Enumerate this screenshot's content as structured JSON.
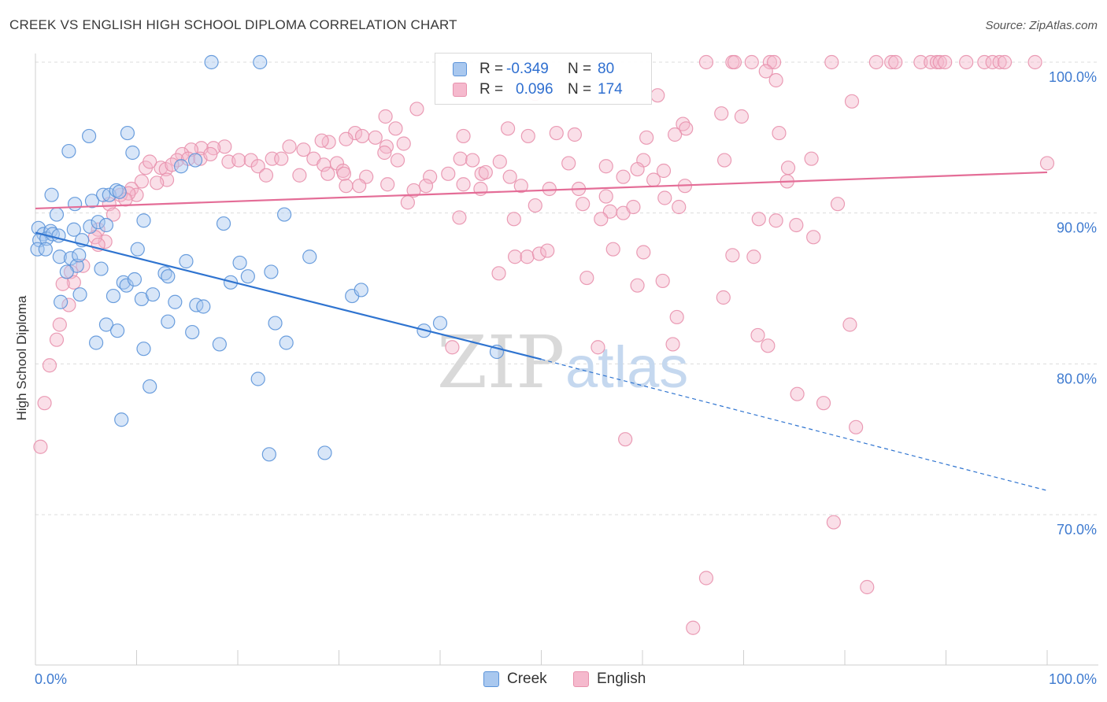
{
  "header": {
    "title": "CREEK VS ENGLISH HIGH SCHOOL DIPLOMA CORRELATION CHART",
    "source": "Source: ZipAtlas.com"
  },
  "watermark": {
    "zip": "ZIP",
    "atlas": "atlas"
  },
  "legend": {
    "rows": [
      {
        "r_label": "R =",
        "r_value": "-0.349",
        "n_label": "N =",
        "n_value": "80"
      },
      {
        "r_label": "R =",
        "r_value": "0.096",
        "n_label": "N =",
        "n_value": "174"
      }
    ],
    "bottom": [
      "Creek",
      "English"
    ]
  },
  "colors": {
    "creek_fill": "#a9c8ef",
    "creek_stroke": "#5b93d9",
    "creek_line": "#2f74d0",
    "english_fill": "#f5b9cd",
    "english_stroke": "#e891ad",
    "english_line": "#e46d97",
    "tick_label": "#3f7bd0"
  },
  "chart_data": {
    "type": "scatter",
    "title": "CREEK VS ENGLISH HIGH SCHOOL DIPLOMA CORRELATION CHART",
    "xlabel": "",
    "ylabel": "High School Diploma",
    "xlim": [
      0,
      100
    ],
    "ylim": [
      60,
      104
    ],
    "x_tick_labels": [
      "0.0%",
      "100.0%"
    ],
    "y_ticks": [
      70,
      80,
      90,
      100
    ],
    "y_tick_labels": [
      "70.0%",
      "80.0%",
      "90.0%",
      "100.0%"
    ],
    "grid": "horizontal dashed",
    "legend_position": "top-center",
    "series": [
      {
        "name": "Creek",
        "r": -0.349,
        "n": 80,
        "trend": {
          "x": [
            0,
            50
          ],
          "y": [
            88.7,
            80.3
          ],
          "dashed_extension": {
            "x": [
              50,
              100
            ],
            "y": [
              80.3,
              71.6
            ]
          }
        },
        "points": [
          [
            17.4,
            100
          ],
          [
            22.2,
            100
          ],
          [
            5.3,
            95.1
          ],
          [
            9.1,
            95.3
          ],
          [
            3.3,
            94.1
          ],
          [
            9.6,
            94.0
          ],
          [
            14.4,
            93.1
          ],
          [
            15.8,
            93.5
          ],
          [
            1.6,
            91.2
          ],
          [
            3.9,
            90.6
          ],
          [
            5.6,
            90.8
          ],
          [
            6.7,
            91.2
          ],
          [
            7.3,
            91.2
          ],
          [
            8.0,
            91.5
          ],
          [
            8.3,
            91.4
          ],
          [
            2.1,
            89.9
          ],
          [
            0.3,
            89.0
          ],
          [
            0.8,
            88.6
          ],
          [
            1.5,
            88.8
          ],
          [
            0.4,
            88.2
          ],
          [
            1.1,
            88.3
          ],
          [
            1.7,
            88.6
          ],
          [
            0.2,
            87.6
          ],
          [
            1.0,
            87.6
          ],
          [
            2.3,
            88.5
          ],
          [
            3.8,
            88.9
          ],
          [
            4.6,
            88.2
          ],
          [
            5.4,
            89.1
          ],
          [
            6.2,
            89.4
          ],
          [
            7.0,
            89.2
          ],
          [
            10.7,
            89.5
          ],
          [
            18.6,
            89.3
          ],
          [
            24.6,
            89.9
          ],
          [
            2.4,
            87.1
          ],
          [
            3.5,
            87.0
          ],
          [
            4.1,
            86.5
          ],
          [
            4.3,
            87.2
          ],
          [
            3.1,
            86.1
          ],
          [
            6.5,
            86.3
          ],
          [
            10.1,
            87.6
          ],
          [
            14.9,
            86.8
          ],
          [
            20.2,
            86.7
          ],
          [
            27.1,
            87.1
          ],
          [
            12.8,
            86.0
          ],
          [
            13.1,
            85.8
          ],
          [
            21.0,
            85.8
          ],
          [
            23.3,
            86.1
          ],
          [
            8.7,
            85.4
          ],
          [
            9.0,
            85.2
          ],
          [
            9.8,
            85.6
          ],
          [
            19.3,
            85.4
          ],
          [
            2.5,
            84.1
          ],
          [
            4.4,
            84.6
          ],
          [
            7.7,
            84.5
          ],
          [
            10.5,
            84.3
          ],
          [
            11.6,
            84.6
          ],
          [
            13.8,
            84.1
          ],
          [
            15.9,
            83.9
          ],
          [
            16.6,
            83.8
          ],
          [
            31.3,
            84.5
          ],
          [
            32.2,
            84.9
          ],
          [
            7.0,
            82.6
          ],
          [
            8.1,
            82.2
          ],
          [
            13.1,
            82.8
          ],
          [
            15.5,
            82.1
          ],
          [
            23.7,
            82.7
          ],
          [
            38.4,
            82.2
          ],
          [
            40.0,
            82.7
          ],
          [
            6.0,
            81.4
          ],
          [
            10.7,
            81.0
          ],
          [
            18.2,
            81.3
          ],
          [
            24.8,
            81.4
          ],
          [
            45.6,
            80.8
          ],
          [
            22.0,
            79.0
          ],
          [
            11.3,
            78.5
          ],
          [
            8.5,
            76.3
          ],
          [
            23.1,
            74.0
          ],
          [
            28.6,
            74.1
          ]
        ]
      },
      {
        "name": "English",
        "r": 0.096,
        "n": 174,
        "trend": {
          "x": [
            0,
            100
          ],
          "y": [
            90.3,
            92.7
          ]
        },
        "points": [
          [
            66.3,
            100
          ],
          [
            68.9,
            100
          ],
          [
            69.1,
            100
          ],
          [
            70.8,
            100
          ],
          [
            72.6,
            100
          ],
          [
            73.0,
            100
          ],
          [
            78.7,
            100
          ],
          [
            83.1,
            100
          ],
          [
            84.6,
            100
          ],
          [
            85.0,
            100
          ],
          [
            87.5,
            100
          ],
          [
            88.5,
            100
          ],
          [
            89.1,
            100
          ],
          [
            89.4,
            100
          ],
          [
            89.9,
            100
          ],
          [
            92.0,
            100
          ],
          [
            93.8,
            100
          ],
          [
            94.6,
            100
          ],
          [
            95.3,
            100
          ],
          [
            95.8,
            100
          ],
          [
            98.8,
            100
          ],
          [
            72.2,
            99.4
          ],
          [
            73.2,
            98.8
          ],
          [
            49.4,
            97.9
          ],
          [
            61.5,
            97.8
          ],
          [
            80.7,
            97.4
          ],
          [
            37.7,
            96.9
          ],
          [
            34.6,
            96.4
          ],
          [
            67.8,
            96.6
          ],
          [
            69.8,
            96.4
          ],
          [
            64.0,
            95.9
          ],
          [
            64.3,
            95.6
          ],
          [
            46.7,
            95.6
          ],
          [
            51.5,
            95.3
          ],
          [
            53.3,
            95.2
          ],
          [
            31.6,
            95.3
          ],
          [
            35.6,
            95.6
          ],
          [
            32.3,
            95.1
          ],
          [
            73.5,
            95.3
          ],
          [
            48.7,
            95.1
          ],
          [
            60.4,
            95.0
          ],
          [
            63.2,
            95.2
          ],
          [
            42.3,
            95.1
          ],
          [
            33.6,
            95.0
          ],
          [
            34.7,
            94.4
          ],
          [
            36.4,
            94.6
          ],
          [
            30.7,
            94.9
          ],
          [
            29.0,
            94.7
          ],
          [
            28.3,
            94.8
          ],
          [
            25.1,
            94.4
          ],
          [
            26.5,
            94.2
          ],
          [
            18.7,
            94.4
          ],
          [
            17.6,
            94.3
          ],
          [
            16.4,
            94.3
          ],
          [
            15.4,
            94.2
          ],
          [
            14.5,
            93.9
          ],
          [
            14.0,
            93.5
          ],
          [
            15.1,
            93.6
          ],
          [
            16.3,
            93.6
          ],
          [
            12.4,
            93.0
          ],
          [
            12.9,
            92.9
          ],
          [
            13.5,
            93.2
          ],
          [
            10.9,
            93.0
          ],
          [
            11.3,
            93.4
          ],
          [
            17.3,
            93.9
          ],
          [
            19.1,
            93.4
          ],
          [
            20.1,
            93.5
          ],
          [
            21.3,
            93.5
          ],
          [
            22.0,
            93.1
          ],
          [
            23.4,
            93.6
          ],
          [
            24.3,
            93.6
          ],
          [
            27.5,
            93.6
          ],
          [
            28.5,
            93.2
          ],
          [
            29.8,
            93.3
          ],
          [
            30.4,
            92.8
          ],
          [
            32.7,
            92.4
          ],
          [
            34.5,
            94.0
          ],
          [
            35.8,
            93.5
          ],
          [
            42.0,
            93.6
          ],
          [
            43.2,
            93.5
          ],
          [
            45.9,
            93.4
          ],
          [
            52.7,
            93.3
          ],
          [
            56.4,
            93.1
          ],
          [
            60.1,
            93.5
          ],
          [
            62.1,
            92.8
          ],
          [
            68.1,
            93.5
          ],
          [
            74.4,
            93.0
          ],
          [
            76.7,
            93.6
          ],
          [
            100.0,
            93.3
          ],
          [
            13.0,
            92.2
          ],
          [
            12.0,
            92.0
          ],
          [
            10.5,
            92.1
          ],
          [
            9.5,
            91.6
          ],
          [
            10.0,
            91.2
          ],
          [
            9.2,
            91.3
          ],
          [
            8.4,
            91.2
          ],
          [
            8.9,
            90.9
          ],
          [
            7.3,
            90.6
          ],
          [
            7.7,
            89.9
          ],
          [
            22.8,
            92.5
          ],
          [
            26.1,
            92.5
          ],
          [
            28.9,
            92.6
          ],
          [
            30.5,
            92.6
          ],
          [
            32.0,
            91.8
          ],
          [
            39.0,
            92.4
          ],
          [
            40.8,
            92.6
          ],
          [
            44.1,
            92.6
          ],
          [
            44.5,
            92.7
          ],
          [
            46.9,
            92.4
          ],
          [
            58.1,
            92.4
          ],
          [
            59.5,
            92.9
          ],
          [
            61.1,
            92.2
          ],
          [
            64.2,
            91.8
          ],
          [
            74.3,
            92.1
          ],
          [
            30.7,
            91.8
          ],
          [
            34.8,
            91.9
          ],
          [
            37.4,
            91.5
          ],
          [
            38.6,
            91.8
          ],
          [
            42.3,
            91.9
          ],
          [
            44.0,
            91.6
          ],
          [
            48.0,
            91.8
          ],
          [
            50.8,
            91.6
          ],
          [
            53.7,
            91.6
          ],
          [
            56.4,
            91.1
          ],
          [
            36.8,
            90.7
          ],
          [
            49.4,
            90.5
          ],
          [
            54.1,
            90.6
          ],
          [
            56.8,
            90.1
          ],
          [
            58.1,
            90.0
          ],
          [
            62.2,
            91.0
          ],
          [
            63.6,
            90.4
          ],
          [
            79.3,
            90.6
          ],
          [
            59.1,
            90.4
          ],
          [
            41.9,
            89.7
          ],
          [
            47.3,
            89.6
          ],
          [
            55.9,
            89.6
          ],
          [
            71.5,
            89.6
          ],
          [
            73.2,
            89.5
          ],
          [
            75.2,
            89.2
          ],
          [
            76.9,
            88.4
          ],
          [
            6.2,
            88.9
          ],
          [
            6.9,
            88.1
          ],
          [
            5.9,
            88.4
          ],
          [
            6.2,
            87.9
          ],
          [
            4.7,
            86.5
          ],
          [
            3.5,
            86.1
          ],
          [
            3.8,
            85.4
          ],
          [
            2.7,
            85.3
          ],
          [
            3.3,
            83.9
          ],
          [
            2.4,
            82.6
          ],
          [
            2.1,
            81.6
          ],
          [
            1.4,
            79.9
          ],
          [
            0.9,
            77.4
          ],
          [
            0.5,
            74.5
          ],
          [
            47.4,
            87.1
          ],
          [
            48.6,
            87.1
          ],
          [
            49.8,
            87.3
          ],
          [
            50.6,
            87.5
          ],
          [
            57.1,
            87.6
          ],
          [
            60.1,
            87.4
          ],
          [
            68.9,
            87.2
          ],
          [
            71.0,
            87.1
          ],
          [
            45.8,
            86.0
          ],
          [
            54.5,
            85.7
          ],
          [
            59.5,
            85.2
          ],
          [
            62.0,
            85.5
          ],
          [
            68.0,
            84.4
          ],
          [
            63.4,
            83.1
          ],
          [
            71.4,
            81.9
          ],
          [
            63.0,
            81.3
          ],
          [
            72.4,
            81.2
          ],
          [
            55.6,
            81.1
          ],
          [
            41.2,
            81.1
          ],
          [
            80.5,
            82.6
          ],
          [
            75.3,
            78.0
          ],
          [
            77.9,
            77.4
          ],
          [
            81.1,
            75.8
          ],
          [
            58.3,
            75.0
          ],
          [
            78.9,
            69.5
          ],
          [
            66.3,
            65.8
          ],
          [
            82.2,
            65.2
          ],
          [
            65.0,
            62.5
          ]
        ]
      }
    ]
  }
}
